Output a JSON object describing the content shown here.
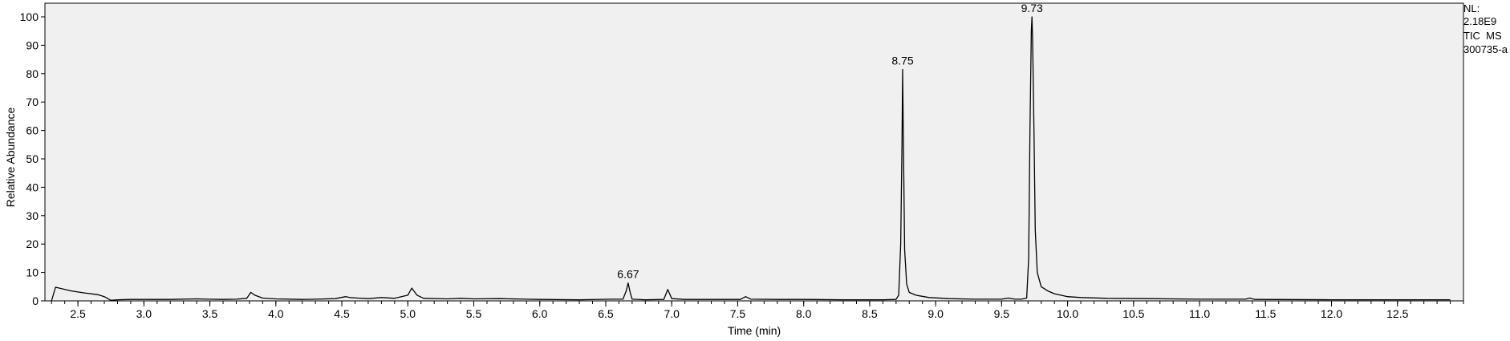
{
  "header": {
    "nl_label": "NL:",
    "nl_value": "2.18E9",
    "scan_filter": "TIC  MS",
    "file_name": "300735-a"
  },
  "chart_data": {
    "type": "line",
    "title": "",
    "xlabel": "Time (min)",
    "ylabel": "Relative Abundance",
    "xlim": [
      2.25,
      13.0
    ],
    "ylim": [
      0,
      100
    ],
    "grid": false,
    "x_ticks": [
      2.5,
      3.0,
      3.5,
      4.0,
      4.5,
      5.0,
      5.5,
      6.0,
      6.5,
      7.0,
      7.5,
      8.0,
      8.5,
      9.0,
      9.5,
      10.0,
      10.5,
      11.0,
      11.5,
      12.0,
      12.5
    ],
    "x_tick_labels": [
      "2.5",
      "3.0",
      "3.5",
      "4.0",
      "4.5",
      "5.0",
      "5.5",
      "6.0",
      "6.5",
      "7.0",
      "7.5",
      "8.0",
      "8.5",
      "9.0",
      "9.5",
      "10.0",
      "10.5",
      "11.0",
      "11.5",
      "12.0",
      "12.5"
    ],
    "y_ticks": [
      0,
      10,
      20,
      30,
      40,
      50,
      60,
      70,
      80,
      90,
      100
    ],
    "y_tick_labels": [
      "0",
      "10",
      "20",
      "30",
      "40",
      "50",
      "60",
      "70",
      "80",
      "90",
      "100"
    ],
    "series": [
      {
        "color": "#000000",
        "points": [
          [
            2.3,
            0.0
          ],
          [
            2.33,
            4.8
          ],
          [
            2.36,
            4.5
          ],
          [
            2.45,
            3.5
          ],
          [
            2.55,
            2.8
          ],
          [
            2.65,
            2.2
          ],
          [
            2.7,
            1.5
          ],
          [
            2.75,
            0.2
          ],
          [
            2.8,
            0.4
          ],
          [
            2.9,
            0.5
          ],
          [
            3.0,
            0.5
          ],
          [
            3.2,
            0.5
          ],
          [
            3.4,
            0.7
          ],
          [
            3.5,
            0.6
          ],
          [
            3.6,
            0.5
          ],
          [
            3.7,
            0.6
          ],
          [
            3.78,
            0.9
          ],
          [
            3.81,
            3.0
          ],
          [
            3.84,
            2.0
          ],
          [
            3.9,
            1.0
          ],
          [
            4.0,
            0.7
          ],
          [
            4.2,
            0.5
          ],
          [
            4.3,
            0.6
          ],
          [
            4.45,
            0.8
          ],
          [
            4.53,
            1.5
          ],
          [
            4.56,
            1.2
          ],
          [
            4.62,
            1.0
          ],
          [
            4.7,
            0.8
          ],
          [
            4.8,
            1.2
          ],
          [
            4.9,
            0.9
          ],
          [
            5.0,
            2.0
          ],
          [
            5.03,
            4.5
          ],
          [
            5.07,
            2.0
          ],
          [
            5.12,
            0.9
          ],
          [
            5.3,
            0.7
          ],
          [
            5.4,
            0.9
          ],
          [
            5.5,
            0.7
          ],
          [
            5.7,
            0.8
          ],
          [
            5.9,
            0.6
          ],
          [
            6.0,
            0.5
          ],
          [
            6.3,
            0.4
          ],
          [
            6.55,
            0.6
          ],
          [
            6.63,
            0.6
          ],
          [
            6.655,
            3.5
          ],
          [
            6.67,
            6.3
          ],
          [
            6.685,
            3.0
          ],
          [
            6.7,
            0.6
          ],
          [
            6.8,
            0.4
          ],
          [
            6.94,
            0.5
          ],
          [
            6.97,
            4.0
          ],
          [
            7.0,
            0.8
          ],
          [
            7.1,
            0.5
          ],
          [
            7.3,
            0.5
          ],
          [
            7.52,
            0.5
          ],
          [
            7.56,
            1.5
          ],
          [
            7.6,
            0.6
          ],
          [
            7.8,
            0.5
          ],
          [
            8.0,
            0.5
          ],
          [
            8.3,
            0.4
          ],
          [
            8.6,
            0.4
          ],
          [
            8.7,
            0.5
          ],
          [
            8.72,
            2.0
          ],
          [
            8.735,
            20.0
          ],
          [
            8.745,
            55.0
          ],
          [
            8.75,
            81.5
          ],
          [
            8.755,
            60.0
          ],
          [
            8.765,
            18.0
          ],
          [
            8.78,
            6.0
          ],
          [
            8.8,
            3.0
          ],
          [
            8.85,
            2.0
          ],
          [
            8.95,
            1.2
          ],
          [
            9.1,
            0.8
          ],
          [
            9.3,
            0.6
          ],
          [
            9.5,
            0.6
          ],
          [
            9.55,
            1.0
          ],
          [
            9.6,
            0.6
          ],
          [
            9.65,
            0.6
          ],
          [
            9.69,
            1.0
          ],
          [
            9.705,
            15.0
          ],
          [
            9.715,
            60.0
          ],
          [
            9.725,
            95.0
          ],
          [
            9.73,
            100.0
          ],
          [
            9.735,
            92.0
          ],
          [
            9.745,
            60.0
          ],
          [
            9.755,
            25.0
          ],
          [
            9.77,
            10.0
          ],
          [
            9.8,
            5.0
          ],
          [
            9.85,
            3.5
          ],
          [
            9.9,
            2.5
          ],
          [
            10.0,
            1.5
          ],
          [
            10.1,
            1.2
          ],
          [
            10.3,
            0.9
          ],
          [
            10.6,
            0.8
          ],
          [
            11.0,
            0.6
          ],
          [
            11.35,
            0.6
          ],
          [
            11.38,
            1.0
          ],
          [
            11.42,
            0.5
          ],
          [
            12.0,
            0.4
          ],
          [
            12.5,
            0.4
          ],
          [
            12.9,
            0.4
          ]
        ]
      }
    ],
    "peak_labels": [
      {
        "x": 6.67,
        "y": 6.3,
        "label": "6.67"
      },
      {
        "x": 8.75,
        "y": 81.5,
        "label": "8.75"
      },
      {
        "x": 9.73,
        "y": 100.0,
        "label": "9.73"
      }
    ]
  }
}
